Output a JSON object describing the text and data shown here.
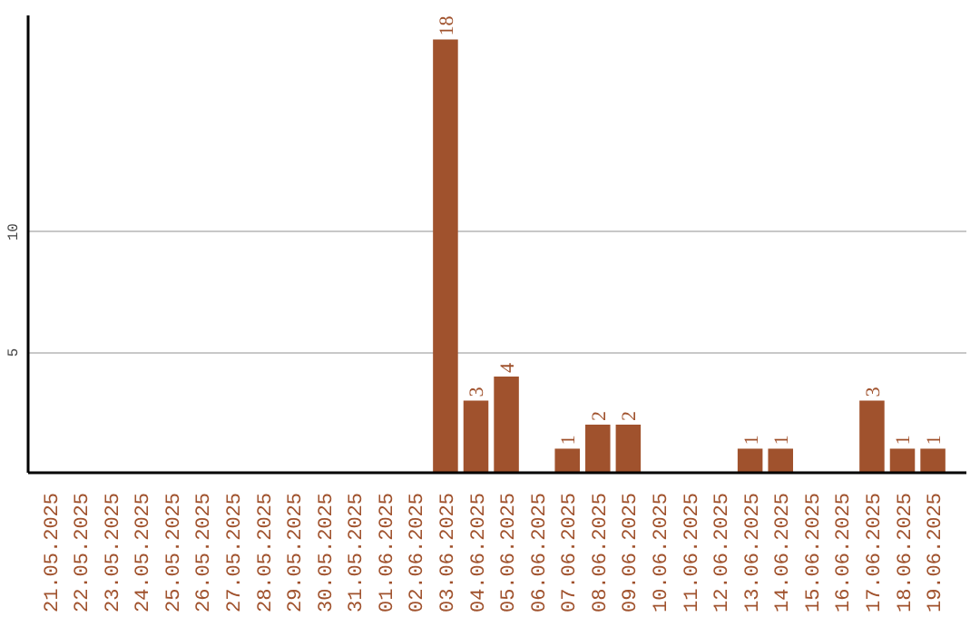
{
  "chart_data": {
    "type": "bar",
    "categories": [
      "21.05.2025",
      "22.05.2025",
      "23.05.2025",
      "24.05.2025",
      "25.05.2025",
      "26.05.2025",
      "27.05.2025",
      "28.05.2025",
      "29.05.2025",
      "30.05.2025",
      "31.05.2025",
      "01.06.2025",
      "02.06.2025",
      "03.06.2025",
      "04.06.2025",
      "05.06.2025",
      "06.06.2025",
      "07.06.2025",
      "08.06.2025",
      "09.06.2025",
      "10.06.2025",
      "11.06.2025",
      "12.06.2025",
      "13.06.2025",
      "14.06.2025",
      "15.06.2025",
      "16.06.2025",
      "17.06.2025",
      "18.06.2025",
      "19.06.2025"
    ],
    "values": [
      0,
      0,
      0,
      0,
      0,
      0,
      0,
      0,
      0,
      0,
      0,
      0,
      0,
      18,
      3,
      4,
      0,
      1,
      2,
      2,
      0,
      0,
      0,
      1,
      1,
      0,
      0,
      3,
      1,
      1
    ],
    "value_labels": [
      null,
      null,
      null,
      null,
      null,
      null,
      null,
      null,
      null,
      null,
      null,
      null,
      null,
      "18",
      "3",
      "4",
      null,
      "1",
      "2",
      "2",
      null,
      null,
      null,
      "1",
      "1",
      null,
      null,
      "3",
      "1",
      "1"
    ],
    "color": "#a0522d",
    "ylim": [
      0,
      19
    ],
    "yticks": [
      5,
      10
    ],
    "grid": "y"
  }
}
